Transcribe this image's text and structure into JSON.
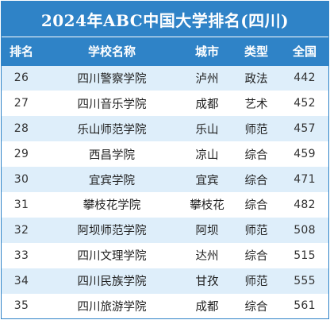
{
  "title": "2024年ABC中国大学排名(四川)",
  "columns": [
    "排名",
    "学校名称",
    "城市",
    "类型",
    "全国"
  ],
  "rows": [
    {
      "rank": "26",
      "name": "四川警察学院",
      "city": "泸州",
      "type": "政法",
      "national": "442"
    },
    {
      "rank": "27",
      "name": "四川音乐学院",
      "city": "成都",
      "type": "艺术",
      "national": "452"
    },
    {
      "rank": "28",
      "name": "乐山师范学院",
      "city": "乐山",
      "type": "师范",
      "national": "457"
    },
    {
      "rank": "29",
      "name": "西昌学院",
      "city": "凉山",
      "type": "综合",
      "national": "459"
    },
    {
      "rank": "30",
      "name": "宜宾学院",
      "city": "宜宾",
      "type": "综合",
      "national": "471"
    },
    {
      "rank": "31",
      "name": "攀枝花学院",
      "city": "攀枝花",
      "type": "综合",
      "national": "482"
    },
    {
      "rank": "32",
      "name": "阿坝师范学院",
      "city": "阿坝",
      "type": "师范",
      "national": "508"
    },
    {
      "rank": "33",
      "name": "四川文理学院",
      "city": "达州",
      "type": "综合",
      "national": "515"
    },
    {
      "rank": "34",
      "name": "四川民族学院",
      "city": "甘孜",
      "type": "师范",
      "national": "555"
    },
    {
      "rank": "35",
      "name": "四川旅游学院",
      "city": "成都",
      "type": "综合",
      "national": "561"
    }
  ],
  "colors": {
    "header": "#2f83c7",
    "stripe": "#deeefa"
  }
}
